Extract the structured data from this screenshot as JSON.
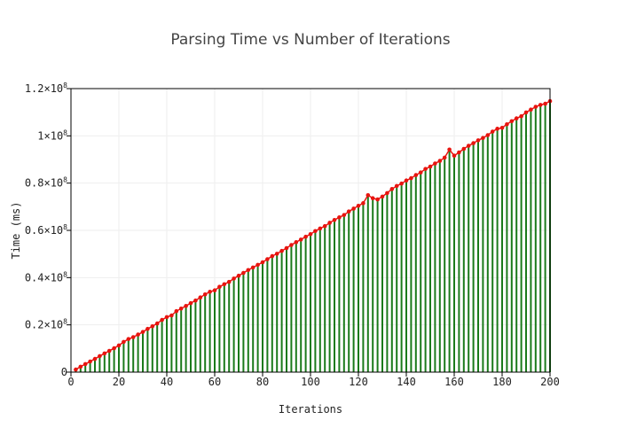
{
  "chart_data": {
    "type": "line",
    "title": "Parsing Time vs Number of Iterations",
    "xlabel": "Iterations",
    "ylabel": "Time (ms)",
    "xlim": [
      0,
      200
    ],
    "ylim": [
      0,
      120000000
    ],
    "x_ticks": [
      {
        "value": 0,
        "label": "0"
      },
      {
        "value": 20,
        "label": "20"
      },
      {
        "value": 40,
        "label": "40"
      },
      {
        "value": 60,
        "label": "60"
      },
      {
        "value": 80,
        "label": "80"
      },
      {
        "value": 100,
        "label": "100"
      },
      {
        "value": 120,
        "label": "120"
      },
      {
        "value": 140,
        "label": "140"
      },
      {
        "value": 160,
        "label": "160"
      },
      {
        "value": 180,
        "label": "180"
      },
      {
        "value": 200,
        "label": "200"
      }
    ],
    "y_ticks": [
      {
        "value": 0,
        "label": "0",
        "exp": ""
      },
      {
        "value": 20000000,
        "label": "0.2×10",
        "exp": "8"
      },
      {
        "value": 40000000,
        "label": "0.4×10",
        "exp": "8"
      },
      {
        "value": 60000000,
        "label": "0.6×10",
        "exp": "8"
      },
      {
        "value": 80000000,
        "label": "0.8×10",
        "exp": "8"
      },
      {
        "value": 100000000,
        "label": "1×10",
        "exp": "8"
      },
      {
        "value": 120000000,
        "label": "1.2×10",
        "exp": "8"
      }
    ],
    "grid": true,
    "stem_color": "#1a7a1a",
    "marker_color": "#e8140f",
    "line_color": "#e8140f",
    "x": [
      2,
      4,
      6,
      8,
      10,
      12,
      14,
      16,
      18,
      20,
      22,
      24,
      26,
      28,
      30,
      32,
      34,
      36,
      38,
      40,
      42,
      44,
      46,
      48,
      50,
      52,
      54,
      56,
      58,
      60,
      62,
      64,
      66,
      68,
      70,
      72,
      74,
      76,
      78,
      80,
      82,
      84,
      86,
      88,
      90,
      92,
      94,
      96,
      98,
      100,
      102,
      104,
      106,
      108,
      110,
      112,
      114,
      116,
      118,
      120,
      122,
      124,
      126,
      128,
      130,
      132,
      134,
      136,
      138,
      140,
      142,
      144,
      146,
      148,
      150,
      152,
      154,
      156,
      158,
      160,
      162,
      164,
      166,
      168,
      170,
      172,
      174,
      176,
      178,
      180,
      182,
      184,
      186,
      188,
      190,
      192,
      194,
      196,
      198,
      200
    ],
    "values": [
      1100000,
      2300000,
      3400000,
      4500000,
      5600000,
      6800000,
      7900000,
      9000000,
      10100000,
      11300000,
      12800000,
      14000000,
      14800000,
      15900000,
      17000000,
      18300000,
      19400000,
      20600000,
      22100000,
      23300000,
      24000000,
      25800000,
      26900000,
      28000000,
      29200000,
      30300000,
      31600000,
      32900000,
      34000000,
      34600000,
      36100000,
      37200000,
      38200000,
      39600000,
      40800000,
      42000000,
      43200000,
      44300000,
      45400000,
      46500000,
      47800000,
      49100000,
      50100000,
      51300000,
      52500000,
      53800000,
      55000000,
      56100000,
      57300000,
      58400000,
      59700000,
      60800000,
      61800000,
      63200000,
      64400000,
      65500000,
      66500000,
      68000000,
      69200000,
      70400000,
      71500000,
      74900000,
      73600000,
      73100000,
      74300000,
      75800000,
      77500000,
      78800000,
      79800000,
      81100000,
      82100000,
      83400000,
      84500000,
      86000000,
      87000000,
      88300000,
      89400000,
      90800000,
      94200000,
      91600000,
      93000000,
      94500000,
      95800000,
      96900000,
      98100000,
      99100000,
      100300000,
      101800000,
      103000000,
      103400000,
      104900000,
      106200000,
      107400000,
      108300000,
      109900000,
      111100000,
      112300000,
      113100000,
      113600000,
      114700000
    ]
  }
}
